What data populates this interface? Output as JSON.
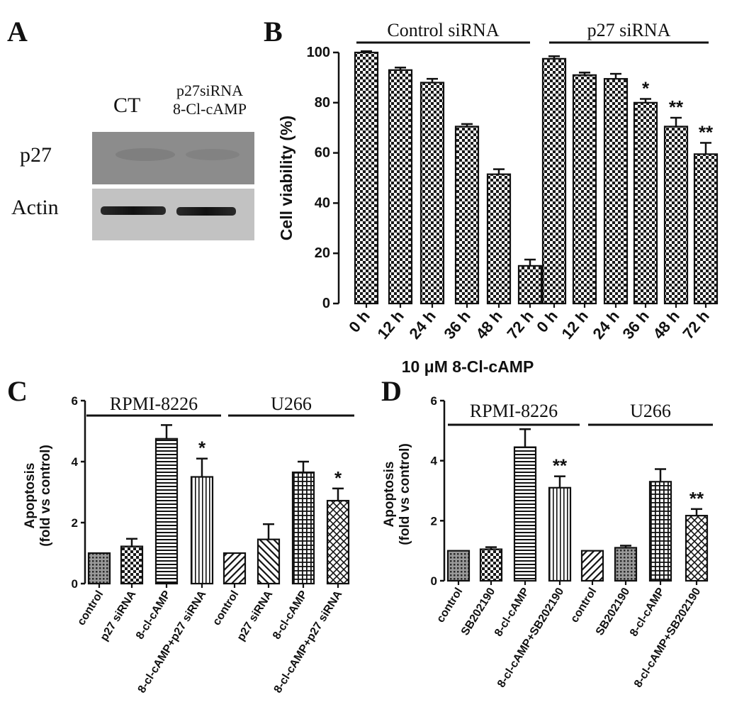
{
  "panels": {
    "A": "A",
    "B": "B",
    "C": "C",
    "D": "D"
  },
  "blot": {
    "col1": "CT",
    "col2_line1": "p27siRNA",
    "col2_line2": "8-Cl-cAMP",
    "row1": "p27",
    "row2": "Actin"
  },
  "chart_data": [
    {
      "panel": "B",
      "type": "bar",
      "ylabel": "Cell viability (%)",
      "xlabel": "10 μM 8-Cl-cAMP",
      "ylim": [
        0,
        100
      ],
      "yticks": [
        0,
        20,
        40,
        60,
        80,
        100
      ],
      "groups": [
        {
          "label": "Control siRNA",
          "categories": [
            "0 h",
            "12 h",
            "24 h",
            "36 h",
            "48 h",
            "72 h"
          ],
          "values": [
            100,
            93,
            88,
            70.5,
            51.5,
            15
          ],
          "errors": [
            0.5,
            1,
            1.5,
            1,
            2,
            2.5
          ],
          "sig": [
            "",
            "",
            "",
            "",
            "",
            ""
          ]
        },
        {
          "label": "p27 siRNA",
          "categories": [
            "0 h",
            "12 h",
            "24 h",
            "36 h",
            "48 h",
            "72 h"
          ],
          "values": [
            97.5,
            91,
            89.5,
            80,
            70.5,
            59.5
          ],
          "errors": [
            1,
            1,
            2,
            1.5,
            3.5,
            4.5
          ],
          "sig": [
            "",
            "",
            "",
            "*",
            "**",
            "**"
          ]
        }
      ],
      "pattern": "checker"
    },
    {
      "panel": "C",
      "type": "bar",
      "ylabel_line1": "Apoptosis",
      "ylabel_line2": "(fold vs control)",
      "ylim": [
        0,
        6
      ],
      "yticks": [
        0,
        2,
        4,
        6
      ],
      "groups": [
        {
          "label": "RPMI-8226",
          "categories": [
            "control",
            "p27 siRNA",
            "8-cl-cAMP",
            "8-cl-cAMP+p27 siRNA"
          ],
          "values": [
            1.0,
            1.22,
            4.75,
            3.5
          ],
          "errors": [
            0,
            0.25,
            0.45,
            0.6
          ],
          "sig": [
            "",
            "",
            "",
            "*"
          ]
        },
        {
          "label": "U266",
          "categories": [
            "control",
            "p27 siRNA",
            "8-cl-cAMP",
            "8-cl-cAMP+p27 siRNA"
          ],
          "values": [
            1.0,
            1.45,
            3.65,
            2.72
          ],
          "errors": [
            0,
            0.5,
            0.35,
            0.4
          ],
          "sig": [
            "",
            "",
            "",
            "*"
          ]
        }
      ],
      "patterns": [
        "dots",
        "checker",
        "hlines",
        "vlines",
        "diag",
        "diag2",
        "grid",
        "crosshatch"
      ]
    },
    {
      "panel": "D",
      "type": "bar",
      "ylabel_line1": "Apoptosis",
      "ylabel_line2": "(fold vs control)",
      "ylim": [
        0,
        6
      ],
      "yticks": [
        0,
        2,
        4,
        6
      ],
      "groups": [
        {
          "label": "RPMI-8226",
          "categories": [
            "control",
            "SB202190",
            "8-cl-cAMP",
            "8-cl-cAMP+SB202190"
          ],
          "values": [
            1.0,
            1.05,
            4.45,
            3.1
          ],
          "errors": [
            0,
            0.07,
            0.6,
            0.38
          ],
          "sig": [
            "",
            "",
            "",
            "**"
          ]
        },
        {
          "label": "U266",
          "categories": [
            "control",
            "SB202190",
            "8-cl-cAMP",
            "8-cl-cAMP+SB202190"
          ],
          "values": [
            1.0,
            1.1,
            3.3,
            2.17
          ],
          "errors": [
            0,
            0.07,
            0.42,
            0.22
          ],
          "sig": [
            "",
            "",
            "",
            "**"
          ]
        }
      ],
      "patterns": [
        "dots",
        "checker",
        "hlines",
        "vlines",
        "diag",
        "dots",
        "grid",
        "crosshatch"
      ]
    }
  ]
}
